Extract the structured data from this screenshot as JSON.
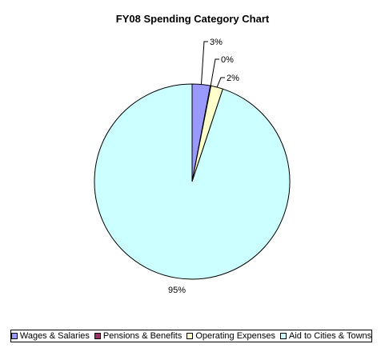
{
  "chart_data": {
    "type": "pie",
    "title": "FY08 Spending Category Chart",
    "slices": [
      {
        "name": "Wages & Salaries",
        "value": 3,
        "label": "3%",
        "color": "#9999ff"
      },
      {
        "name": "Pensions & Benefits",
        "value": 0.1,
        "label": "0%",
        "color": "#993366"
      },
      {
        "name": "Operating Expenses",
        "value": 2,
        "label": "2%",
        "color": "#ffffcc"
      },
      {
        "name": "Aid to Cities & Towns",
        "value": 95,
        "label": "95%",
        "color": "#ccffff"
      }
    ],
    "legend_position": "bottom"
  }
}
